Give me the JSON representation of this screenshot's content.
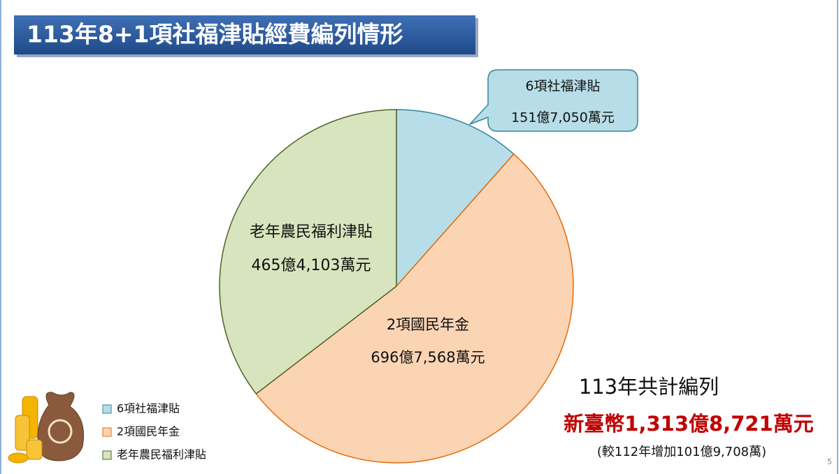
{
  "chart_data": {
    "type": "pie",
    "title": "113年8+1項社福津貼經費編列情形",
    "categories": [
      "6項社福津貼",
      "2項國民年金",
      "老年農民福利津貼"
    ],
    "values": [
      151.705,
      696.7568,
      465.4103
    ],
    "value_labels": [
      "151億7,050萬元",
      "696億7,568萬元",
      "465億4,103萬元"
    ],
    "colors": [
      "#b7dde8",
      "#fbd4b4",
      "#d7e4bd"
    ],
    "edge_colors": [
      "#31859c",
      "#e46c0a",
      "#4f6228"
    ],
    "legend": "bottom-left",
    "annotations": [
      "113年共計編列",
      "新臺幣1,313億8,721萬元",
      "(較112年增加101億9,708萬)"
    ]
  },
  "page_number": "5"
}
